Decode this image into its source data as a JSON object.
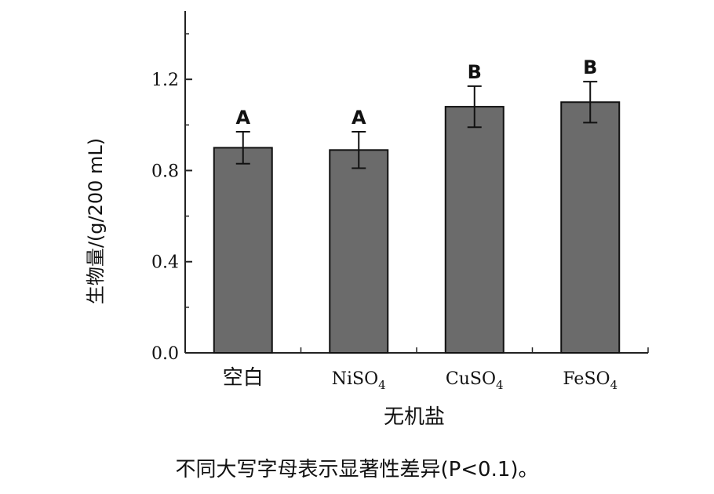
{
  "chart_data": {
    "type": "bar",
    "categories": [
      "空白",
      "NiSO4",
      "CuSO4",
      "FeSO4"
    ],
    "category_labels": [
      {
        "base": "空白",
        "sub": ""
      },
      {
        "base": "NiSO",
        "sub": "4"
      },
      {
        "base": "CuSO",
        "sub": "4"
      },
      {
        "base": "FeSO",
        "sub": "4"
      }
    ],
    "values": [
      0.9,
      0.89,
      1.08,
      1.1
    ],
    "errors": [
      0.07,
      0.08,
      0.09,
      0.09
    ],
    "significance": [
      "A",
      "A",
      "B",
      "B"
    ],
    "xlabel": "无机盐",
    "ylabel": "生物量/(g/200 mL)",
    "ylim": [
      0,
      1.5
    ],
    "yticks": [
      0.0,
      0.4,
      0.8,
      1.2
    ],
    "ytick_labels": [
      "0.0",
      "0.4",
      "0.8",
      "1.2"
    ],
    "bar_color": "#6b6b6b",
    "grid": false,
    "legend": "none"
  },
  "caption": "不同大写字母表示显著性差异(P<0.1)。"
}
